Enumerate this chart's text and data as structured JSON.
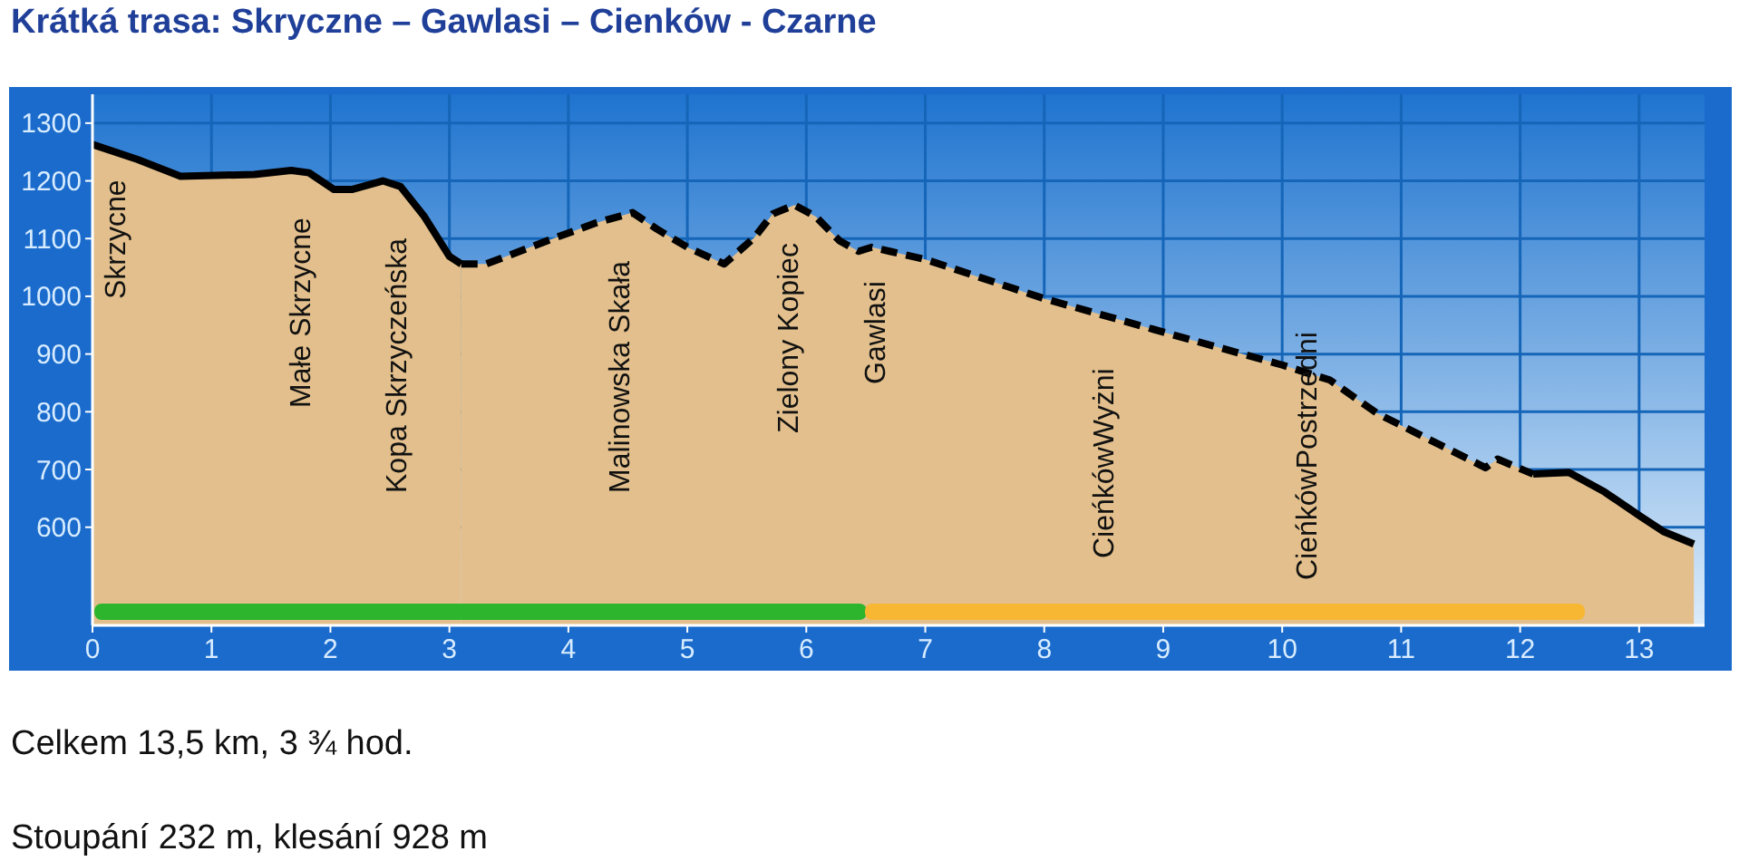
{
  "chart_data": {
    "type": "area",
    "title": "Krátká trasa: Skryczne – Gawlasi – Cienków - Czarne",
    "xlim": [
      0,
      13.55
    ],
    "xticks": [
      0,
      1,
      2,
      3,
      4,
      5,
      6,
      7,
      8,
      9,
      10,
      11,
      12,
      13
    ],
    "ylim": [
      430,
      1350
    ],
    "yticks": [
      600,
      700,
      800,
      900,
      1000,
      1100,
      1200,
      1300
    ],
    "grid": true,
    "series": [
      {
        "color": "#e2bf8c",
        "line_style": "solid",
        "x": [
          0,
          0.38,
          0.74,
          1.36,
          1.67,
          1.82,
          2.03,
          2.18,
          2.44,
          2.59,
          2.79,
          3.0,
          3.1
        ],
        "values": [
          1263,
          1237,
          1208,
          1211,
          1218,
          1214,
          1185,
          1185,
          1200,
          1190,
          1138,
          1069,
          1056
        ]
      },
      {
        "color": "#e2bf8c",
        "line_style": "dashed",
        "x": [
          3.1,
          3.31,
          3.82,
          4.23,
          4.54,
          4.74,
          5.0,
          5.31,
          5.56,
          5.72,
          5.9,
          6.08,
          6.28,
          6.44,
          6.55,
          6.7,
          7.0,
          8.0,
          9.0,
          10.0,
          10.4,
          10.8,
          11.41,
          11.71,
          11.81,
          12.11
        ],
        "values": [
          1056,
          1056,
          1096,
          1127,
          1145,
          1117,
          1085,
          1056,
          1101,
          1143,
          1158,
          1138,
          1096,
          1078,
          1085,
          1078,
          1064,
          996,
          938,
          881,
          855,
          797,
          734,
          703,
          718,
          692
        ]
      },
      {
        "color": "#e2bf8c",
        "line_style": "solid",
        "x": [
          12.11,
          12.41,
          12.71,
          13.01,
          13.21,
          13.46
        ],
        "values": [
          692,
          695,
          661,
          619,
          592,
          571
        ]
      }
    ],
    "annotations": [
      "Skrzycne",
      "Małe Skrzycne",
      "Kopa Skrzyczeńska",
      "Malinowska Skała",
      "Zielony Kopiec",
      "Gawlasi",
      "CieńkówWyżni",
      "CieńkówPostrzedni",
      "Celkem 13,5 km, 3 ¾ hod.",
      "Stoupání 232 m, klesání 928 m"
    ]
  }
}
